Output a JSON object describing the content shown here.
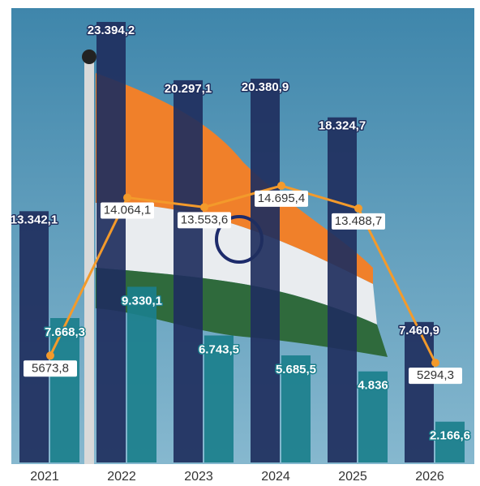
{
  "chart_data": {
    "type": "bar",
    "categories": [
      "2021",
      "2022",
      "2023",
      "2024",
      "2025",
      "2026"
    ],
    "series": [
      {
        "type": "bar",
        "color": "#1f2f5e",
        "values": [
          13342.1,
          23394.2,
          20297.1,
          20380.9,
          18324.7,
          7460.9
        ],
        "value_labels": [
          "13.342,1",
          "23.394,2",
          "20.297,1",
          "20.380,9",
          "18.324,7",
          "7.460,9"
        ]
      },
      {
        "type": "bar",
        "color": "#1b7f8c",
        "values": [
          7668.3,
          9330.1,
          6743.5,
          5685.5,
          4836,
          2166.6
        ],
        "value_labels": [
          "7.668,3",
          "9.330,1",
          "6.743,5",
          "5.685,5",
          "4.836",
          "2.166,6"
        ]
      },
      {
        "type": "line",
        "color": "#f39a2b",
        "values": [
          5673.8,
          14064.1,
          13553.6,
          14695.4,
          13488.7,
          5294.3
        ],
        "value_labels": [
          "5673,8",
          "14.064,1",
          "13.553,6",
          "14.695,4",
          "13.488,7",
          "5294,3"
        ]
      }
    ]
  }
}
